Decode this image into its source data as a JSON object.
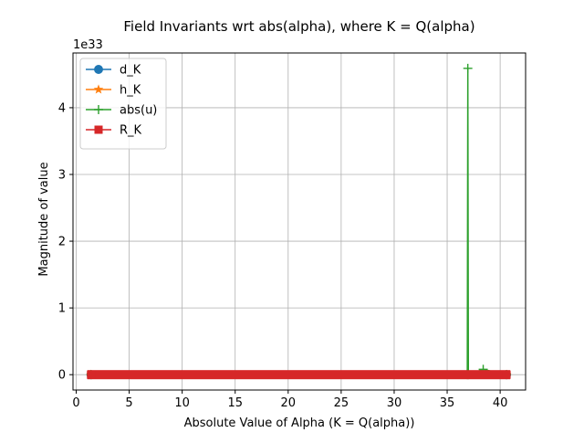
{
  "chart_data": {
    "type": "line",
    "title": "Field Invariants wrt abs(alpha), where K = Q(alpha)",
    "xlabel": "Absolute Value of Alpha (K = Q(alpha))",
    "ylabel": "Magnitude of value",
    "y_scale_label": "1e33",
    "xlim": [
      -0.3,
      42.4
    ],
    "ylim": [
      -0.23,
      4.82
    ],
    "y_multiplier": 1e+33,
    "grid": true,
    "legend_position": "upper-left",
    "x_ticks": [
      0,
      5,
      10,
      15,
      20,
      25,
      30,
      35,
      40
    ],
    "x_tick_labels": [
      "0",
      "5",
      "10",
      "15",
      "20",
      "25",
      "30",
      "35",
      "40"
    ],
    "y_ticks": [
      0,
      1,
      2,
      3,
      4
    ],
    "y_tick_labels": [
      "0",
      "1",
      "2",
      "3",
      "4"
    ],
    "series": [
      {
        "name": "d_K",
        "marker": "circle",
        "color": "#1f77b4",
        "x": [
          1.4,
          40.6
        ],
        "y": [
          0,
          0
        ]
      },
      {
        "name": "h_K",
        "marker": "star",
        "color": "#ff7f0e",
        "x": [
          1.4,
          40.6
        ],
        "y": [
          0,
          0
        ]
      },
      {
        "name": "abs(u)",
        "marker": "plus",
        "color": "#2ca02c",
        "x": [
          1.4,
          36.9,
          36.95,
          37.0,
          38.4,
          40.6
        ],
        "y": [
          0,
          0,
          4.59,
          0,
          0.08,
          0
        ]
      },
      {
        "name": "R_K",
        "marker": "square",
        "color": "#d62728",
        "x": [
          1.4,
          40.6
        ],
        "y": [
          0,
          0
        ]
      }
    ]
  }
}
